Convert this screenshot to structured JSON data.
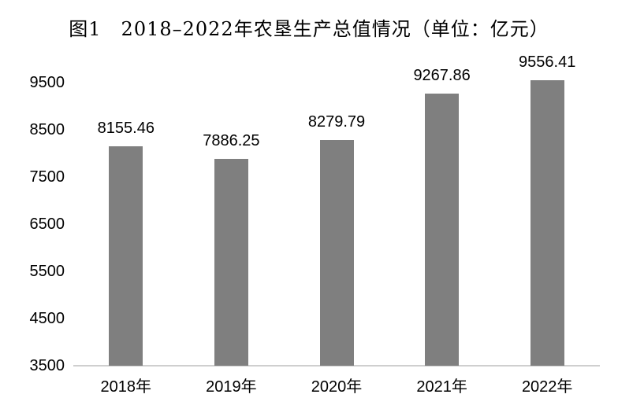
{
  "chart_data": {
    "type": "bar",
    "title": "图1　2018–2022年农垦生产总值情况（单位：亿元）",
    "figure_number": "图1",
    "unit": "亿元",
    "categories": [
      "2018年",
      "2019年",
      "2020年",
      "2021年",
      "2022年"
    ],
    "values": [
      8155.46,
      7886.25,
      8279.79,
      9267.86,
      9556.41
    ],
    "value_labels": [
      "8155.46",
      "7886.25",
      "8279.79",
      "9267.86",
      "9556.41"
    ],
    "y_ticks": [
      3500,
      4500,
      5500,
      6500,
      7500,
      8500,
      9500
    ],
    "ylim": [
      3500,
      9800
    ],
    "xlabel": "",
    "ylabel": "",
    "grid": false,
    "legend": "none",
    "bar_color": "#7f7f7f",
    "axis_line_color": "#cfcfcf",
    "text_color": "#000000",
    "background_color": "#ffffff"
  }
}
